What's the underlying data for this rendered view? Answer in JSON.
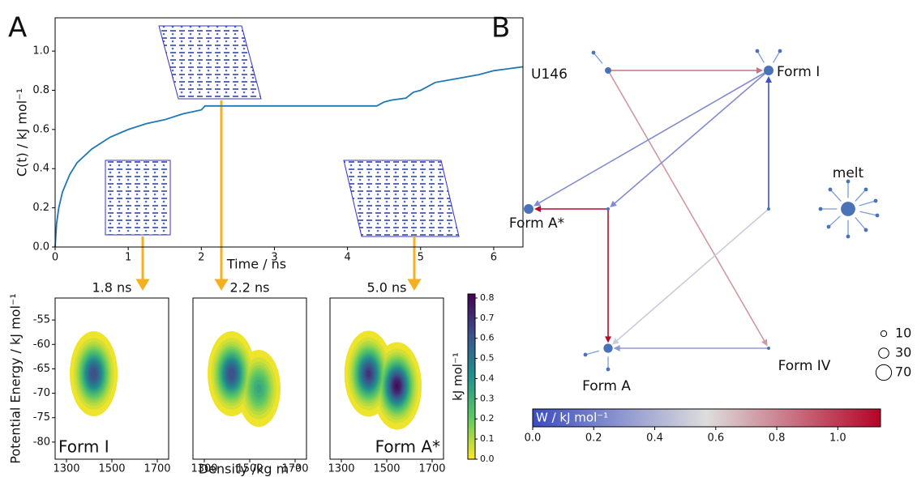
{
  "panel_labels": [
    "A",
    "B"
  ],
  "chart_data": [
    {
      "type": "line",
      "xlabel": "Time / ns",
      "ylabel": "C(t) / kJ mol⁻¹",
      "xlim": [
        0,
        6.4
      ],
      "ylim": [
        0,
        1.17
      ],
      "xticks": [
        0,
        1,
        2,
        3,
        4,
        5,
        6
      ],
      "yticks": [
        {
          "value": 0,
          "label": "0.0"
        },
        0.2,
        0.4,
        0.6,
        0.8,
        {
          "value": 1,
          "label": "1.0"
        }
      ],
      "color": "#1f77b4",
      "x": [
        0,
        0.02,
        0.05,
        0.1,
        0.2,
        0.3,
        0.5,
        0.75,
        1.0,
        1.25,
        1.5,
        1.75,
        2.0,
        2.05,
        2.5,
        3.0,
        3.5,
        4.0,
        4.4,
        4.5,
        4.6,
        4.8,
        4.9,
        5.0,
        5.2,
        5.5,
        5.8,
        6.0,
        6.2,
        6.4
      ],
      "values": [
        0,
        0.12,
        0.2,
        0.28,
        0.37,
        0.43,
        0.5,
        0.56,
        0.6,
        0.63,
        0.65,
        0.68,
        0.7,
        0.72,
        0.72,
        0.72,
        0.72,
        0.72,
        0.72,
        0.74,
        0.75,
        0.76,
        0.79,
        0.8,
        0.84,
        0.86,
        0.88,
        0.9,
        0.91,
        0.92
      ]
    },
    {
      "type": "density",
      "title": "1.8 ns",
      "label": "Form I",
      "xlabel": "Density /kg m⁻³",
      "ylabel": "Potential Energy / kJ mol⁻¹",
      "xlim": [
        1250,
        1750
      ],
      "ylim": [
        -83.5,
        -50.5
      ],
      "xticks": [
        1300,
        1500,
        1700
      ],
      "yticks": [
        -55,
        -60,
        -65,
        -70,
        -75,
        -80
      ],
      "peaks": [
        {
          "x": 1420,
          "y": -66,
          "value": 0.65
        }
      ]
    },
    {
      "type": "density",
      "title": "2.2 ns",
      "xlim": [
        1250,
        1750
      ],
      "ylim": [
        -83.5,
        -50.5
      ],
      "xticks": [
        1300,
        1500,
        1700
      ],
      "peaks": [
        {
          "x": 1420,
          "y": -66,
          "value": 0.65
        },
        {
          "x": 1540,
          "y": -69,
          "value": 0.35
        }
      ]
    },
    {
      "type": "density",
      "title": "5.0 ns",
      "label": "Form A*",
      "xlim": [
        1250,
        1750
      ],
      "ylim": [
        -83.5,
        -50.5
      ],
      "xticks": [
        1300,
        1500,
        1700
      ],
      "peaks": [
        {
          "x": 1420,
          "y": -66,
          "value": 0.7
        },
        {
          "x": 1545,
          "y": -68.5,
          "value": 0.8
        }
      ]
    },
    {
      "type": "colorbar",
      "label": "kJ mol⁻¹",
      "ylim": [
        0,
        0.82
      ],
      "yticks": [
        {
          "value": 0,
          "label": "0.0"
        },
        0.1,
        0.2,
        0.3,
        0.4,
        0.5,
        0.6,
        0.7,
        0.8
      ],
      "cmap": [
        "#fde725",
        "#5ec962",
        "#21918c",
        "#3b528b",
        "#440154"
      ]
    }
  ],
  "network": {
    "nodes": [
      {
        "label": "U146",
        "size": 12
      },
      {
        "label": "Form I",
        "size": 27
      },
      {
        "label": "Form A*",
        "size": 27
      },
      {
        "label": null,
        "size": 3
      },
      {
        "label": "Form A",
        "size": 24
      },
      {
        "label": "Form IV",
        "size": 3
      },
      {
        "label": null,
        "size": 3
      },
      {
        "label": "melt",
        "size": 60
      }
    ],
    "edges": [
      {
        "from": 0,
        "to": 1,
        "value": 0.85
      },
      {
        "from": 0,
        "to": 5,
        "value": 0.75
      },
      {
        "from": 1,
        "to": 2,
        "value": 0.25
      },
      {
        "from": 1,
        "to": 3,
        "value": 0.25
      },
      {
        "from": 6,
        "to": 1,
        "value": 0.02
      },
      {
        "from": 3,
        "to": 2,
        "value": 1.12
      },
      {
        "from": 3,
        "to": 4,
        "value": 1.12
      },
      {
        "from": 6,
        "to": 4,
        "value": 0.5
      },
      {
        "from": 5,
        "to": 4,
        "value": 0.3
      }
    ],
    "size_legend": [
      10,
      30,
      70
    ],
    "colorbar": {
      "label": "W / kJ mol⁻¹",
      "xlim": [
        0,
        1.14
      ],
      "xticks": [
        {
          "value": 0,
          "label": "0.0"
        },
        0.2,
        0.4,
        0.6,
        0.8,
        {
          "value": 1,
          "label": "1.0"
        }
      ],
      "cmap": [
        "#3b4cc0",
        "#dddddd",
        "#b40426"
      ]
    }
  }
}
